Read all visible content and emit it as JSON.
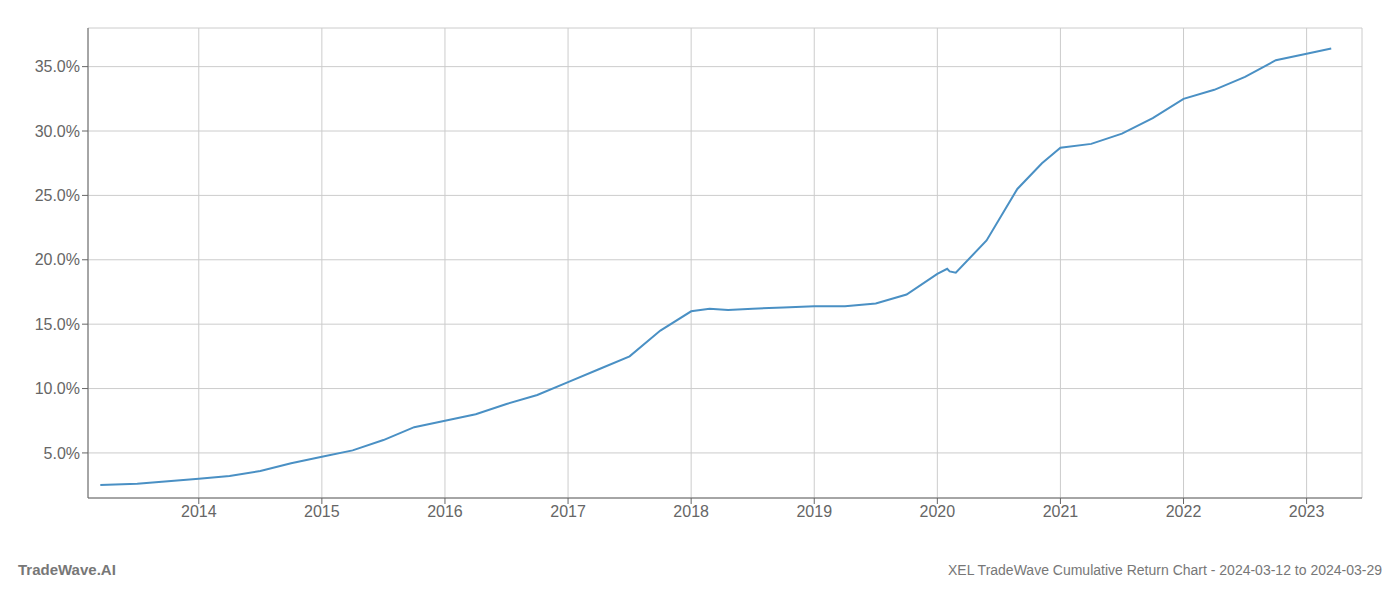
{
  "chart_data": {
    "type": "line",
    "x": [
      2013.2,
      2013.5,
      2013.75,
      2014.0,
      2014.25,
      2014.5,
      2014.75,
      2015.0,
      2015.25,
      2015.5,
      2015.75,
      2016.0,
      2016.25,
      2016.5,
      2016.75,
      2017.0,
      2017.25,
      2017.5,
      2017.75,
      2018.0,
      2018.15,
      2018.3,
      2018.5,
      2018.75,
      2019.0,
      2019.25,
      2019.5,
      2019.75,
      2020.0,
      2020.08,
      2020.1,
      2020.15,
      2020.4,
      2020.65,
      2020.85,
      2021.0,
      2021.25,
      2021.5,
      2021.75,
      2022.0,
      2022.25,
      2022.5,
      2022.75,
      2023.0,
      2023.2
    ],
    "values": [
      2.5,
      2.6,
      2.8,
      3.0,
      3.2,
      3.6,
      4.2,
      4.7,
      5.2,
      6.0,
      7.0,
      7.5,
      8.0,
      8.8,
      9.5,
      10.5,
      11.5,
      12.5,
      14.5,
      16.0,
      16.2,
      16.1,
      16.2,
      16.3,
      16.4,
      16.4,
      16.6,
      17.3,
      18.9,
      19.3,
      19.1,
      19.0,
      21.5,
      25.5,
      27.5,
      28.7,
      29.0,
      29.8,
      31.0,
      32.5,
      33.2,
      34.2,
      35.5,
      36.0,
      36.4
    ],
    "color": "#4a90c4",
    "xlim": [
      2013.1,
      2023.45
    ],
    "ylim": [
      1.5,
      38.0
    ],
    "xticks": [
      2014,
      2015,
      2016,
      2017,
      2018,
      2019,
      2020,
      2021,
      2022,
      2023
    ],
    "yticks": [
      {
        "value": 5.0,
        "label": "5.0%"
      },
      {
        "value": 10.0,
        "label": "10.0%"
      },
      {
        "value": 15.0,
        "label": "15.0%"
      },
      {
        "value": 20.0,
        "label": "20.0%"
      },
      {
        "value": 25.0,
        "label": "25.0%"
      },
      {
        "value": 30.0,
        "label": "30.0%"
      },
      {
        "value": 35.0,
        "label": "35.0%"
      }
    ],
    "grid": true,
    "annotations": [
      "TradeWave.AI",
      "XEL TradeWave Cumulative Return Chart - 2024-03-12 to 2024-03-29"
    ]
  }
}
